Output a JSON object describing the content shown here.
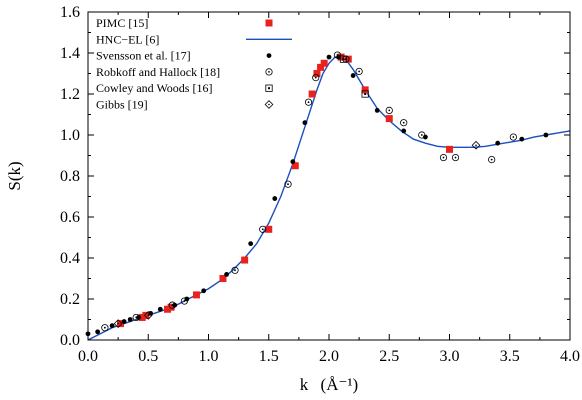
{
  "chart_data": {
    "type": "scatter",
    "title": "",
    "xlabel": "k",
    "xlabel_unit": "(Å⁻¹)",
    "ylabel": "S(k)",
    "xlim": [
      0.0,
      4.0
    ],
    "ylim": [
      0.0,
      1.6
    ],
    "x_ticks": [
      "0.0",
      "0.5",
      "1.0",
      "1.5",
      "2.0",
      "2.5",
      "3.0",
      "3.5",
      "4.0"
    ],
    "y_ticks": [
      "0.0",
      "0.2",
      "0.4",
      "0.6",
      "0.8",
      "1.0",
      "1.2",
      "1.4",
      "1.6"
    ],
    "legend_position": "top-left",
    "grid": false,
    "series": [
      {
        "name": "PIMC [15]",
        "marker": "filled-square",
        "color": "#e8231e",
        "points": [
          [
            0.27,
            0.08
          ],
          [
            0.45,
            0.11
          ],
          [
            0.48,
            0.12
          ],
          [
            0.66,
            0.15
          ],
          [
            0.69,
            0.16
          ],
          [
            0.9,
            0.22
          ],
          [
            1.12,
            0.3
          ],
          [
            1.3,
            0.39
          ],
          [
            1.5,
            0.54
          ],
          [
            1.72,
            0.85
          ],
          [
            1.86,
            1.2
          ],
          [
            1.9,
            1.3
          ],
          [
            1.93,
            1.33
          ],
          [
            1.96,
            1.35
          ],
          [
            2.1,
            1.38
          ],
          [
            2.16,
            1.37
          ],
          [
            2.3,
            1.22
          ],
          [
            2.5,
            1.08
          ],
          [
            3.0,
            0.93
          ]
        ]
      },
      {
        "name": "HNC−EL [6]",
        "marker": "line",
        "color": "#1a4fbf",
        "points": [
          [
            0.0,
            0.0
          ],
          [
            0.1,
            0.03
          ],
          [
            0.2,
            0.06
          ],
          [
            0.3,
            0.08
          ],
          [
            0.4,
            0.1
          ],
          [
            0.5,
            0.12
          ],
          [
            0.6,
            0.14
          ],
          [
            0.7,
            0.16
          ],
          [
            0.8,
            0.19
          ],
          [
            0.9,
            0.22
          ],
          [
            1.0,
            0.25
          ],
          [
            1.1,
            0.29
          ],
          [
            1.2,
            0.34
          ],
          [
            1.3,
            0.4
          ],
          [
            1.4,
            0.47
          ],
          [
            1.5,
            0.57
          ],
          [
            1.6,
            0.7
          ],
          [
            1.7,
            0.86
          ],
          [
            1.8,
            1.04
          ],
          [
            1.9,
            1.22
          ],
          [
            1.95,
            1.3
          ],
          [
            2.0,
            1.35
          ],
          [
            2.05,
            1.38
          ],
          [
            2.1,
            1.38
          ],
          [
            2.15,
            1.36
          ],
          [
            2.2,
            1.32
          ],
          [
            2.3,
            1.22
          ],
          [
            2.4,
            1.13
          ],
          [
            2.5,
            1.07
          ],
          [
            2.6,
            1.02
          ],
          [
            2.7,
            0.98
          ],
          [
            2.8,
            0.96
          ],
          [
            2.9,
            0.945
          ],
          [
            3.0,
            0.94
          ],
          [
            3.1,
            0.94
          ],
          [
            3.2,
            0.94
          ],
          [
            3.3,
            0.945
          ],
          [
            3.4,
            0.955
          ],
          [
            3.5,
            0.965
          ],
          [
            3.6,
            0.975
          ],
          [
            3.7,
            0.99
          ],
          [
            3.8,
            1.0
          ],
          [
            3.9,
            1.01
          ],
          [
            4.0,
            1.02
          ]
        ]
      },
      {
        "name": "Svensson et al. [17]",
        "marker": "filled-circle",
        "color": "#000000",
        "points": [
          [
            0.0,
            0.03
          ],
          [
            0.08,
            0.04
          ],
          [
            0.2,
            0.07
          ],
          [
            0.3,
            0.09
          ],
          [
            0.35,
            0.1
          ],
          [
            0.42,
            0.11
          ],
          [
            0.52,
            0.13
          ],
          [
            0.6,
            0.15
          ],
          [
            0.72,
            0.17
          ],
          [
            0.82,
            0.2
          ],
          [
            0.96,
            0.24
          ],
          [
            1.15,
            0.32
          ],
          [
            1.35,
            0.47
          ],
          [
            1.55,
            0.69
          ],
          [
            1.7,
            0.87
          ],
          [
            1.8,
            1.06
          ],
          [
            2.0,
            1.38
          ],
          [
            2.08,
            1.38
          ],
          [
            2.2,
            1.29
          ],
          [
            2.4,
            1.12
          ],
          [
            2.62,
            1.02
          ],
          [
            2.8,
            0.99
          ],
          [
            3.4,
            0.96
          ],
          [
            3.6,
            0.98
          ],
          [
            3.8,
            1.0
          ]
        ]
      },
      {
        "name": "Robkoff and Hallock [18]",
        "marker": "dotted-circle",
        "color": "#000000",
        "points": [
          [
            0.14,
            0.06
          ],
          [
            0.4,
            0.11
          ],
          [
            0.7,
            0.17
          ],
          [
            0.8,
            0.19
          ],
          [
            1.22,
            0.34
          ],
          [
            1.45,
            0.54
          ],
          [
            1.66,
            0.76
          ],
          [
            1.83,
            1.16
          ],
          [
            1.89,
            1.28
          ],
          [
            2.07,
            1.39
          ],
          [
            2.14,
            1.37
          ],
          [
            2.25,
            1.31
          ],
          [
            2.5,
            1.12
          ],
          [
            2.62,
            1.06
          ],
          [
            2.77,
            1.0
          ],
          [
            2.95,
            0.89
          ],
          [
            3.05,
            0.89
          ],
          [
            3.35,
            0.88
          ],
          [
            3.53,
            0.99
          ]
        ]
      },
      {
        "name": "Cowley and Woods [16]",
        "marker": "open-square",
        "color": "#000000",
        "points": [
          [
            2.12,
            1.37
          ],
          [
            2.3,
            1.2
          ]
        ]
      },
      {
        "name": "Gibbs [19]",
        "marker": "open-diamond",
        "color": "#000000",
        "points": [
          [
            0.25,
            0.08
          ],
          [
            0.5,
            0.12
          ],
          [
            3.22,
            0.95
          ]
        ]
      }
    ]
  }
}
